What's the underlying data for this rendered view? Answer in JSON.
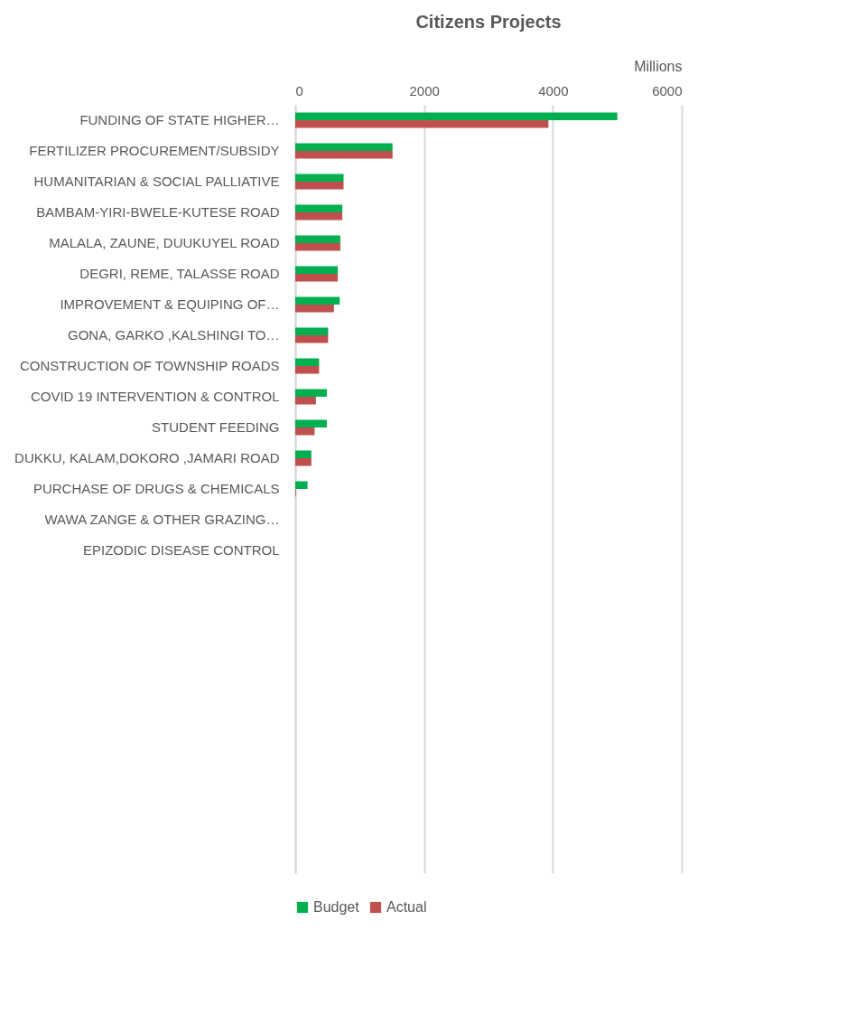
{
  "chart_data": {
    "type": "bar",
    "orientation": "horizontal",
    "title": "Citizens Projects",
    "xlabel": "Millions",
    "categories": [
      "FUNDING OF STATE HIGHER…",
      "FERTILIZER PROCUREMENT/SUBSIDY",
      "HUMANITARIAN & SOCIAL PALLIATIVE",
      "BAMBAM-YIRI-BWELE-KUTESE ROAD",
      "MALALA, ZAUNE, DUUKUYEL ROAD",
      "DEGRI, REME, TALASSE ROAD",
      "IMPROVEMENT & EQUIPING OF…",
      "GONA, GARKO ,KALSHINGI TO…",
      "CONSTRUCTION OF TOWNSHIP ROADS",
      "COVID 19 INTERVENTION & CONTROL",
      "STUDENT FEEDING",
      "DUKKU, KALAM,DOKORO ,JAMARI ROAD",
      "PURCHASE OF DRUGS & CHEMICALS",
      "WAWA ZANGE & OTHER GRAZING…",
      "EPIZODIC DISEASE CONTROL",
      null,
      null,
      null,
      null,
      null,
      null,
      null,
      null,
      null,
      null
    ],
    "series": [
      {
        "name": "Budget",
        "color": "#00b050",
        "values": [
          5000,
          1510,
          750,
          730,
          700,
          660,
          690,
          510,
          370,
          490,
          490,
          250,
          190,
          0,
          0,
          null,
          null,
          null,
          null,
          null,
          null,
          null,
          null,
          null,
          null
        ]
      },
      {
        "name": "Actual",
        "color": "#c0504d",
        "values": [
          3930,
          1510,
          750,
          730,
          700,
          660,
          600,
          510,
          370,
          320,
          300,
          250,
          10,
          0,
          0,
          null,
          null,
          null,
          null,
          null,
          null,
          null,
          null,
          null,
          null
        ]
      }
    ],
    "xlim": [
      0,
      6000
    ],
    "xticks": [
      0,
      2000,
      4000,
      6000
    ],
    "grid": "x",
    "legend": "bottom"
  }
}
